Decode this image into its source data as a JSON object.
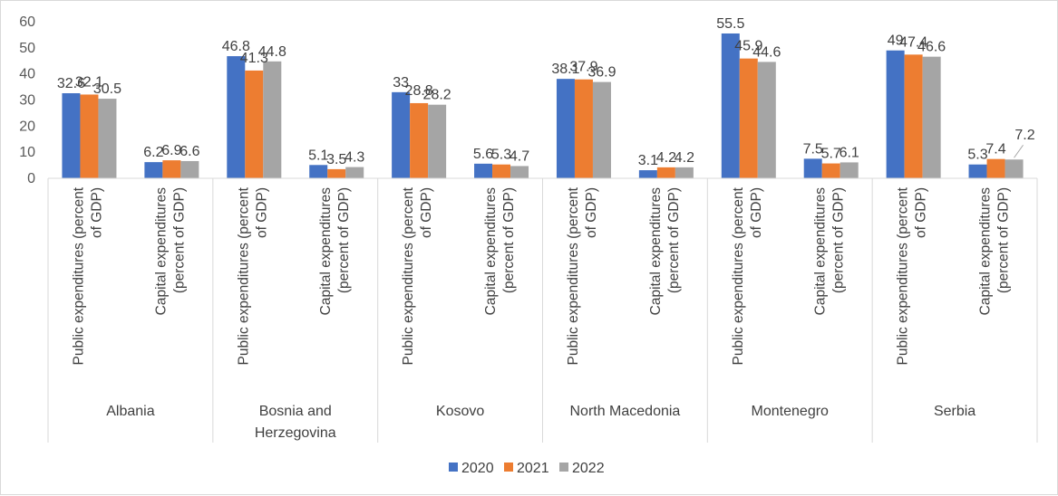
{
  "chart_data": {
    "type": "bar",
    "title": "",
    "xlabel": "",
    "ylabel": "",
    "ylim": [
      0,
      60
    ],
    "yticks": [
      0,
      10,
      20,
      30,
      40,
      50,
      60
    ],
    "grid": false,
    "legend_position": "bottom",
    "groups": [
      {
        "label": "Albania",
        "categories": [
          "Public expenditures (percent of GDP)",
          "Capital expenditures (percent of GDP)"
        ]
      },
      {
        "label": "Bosnia and Herzegovina",
        "categories": [
          "Public expenditures (percent of GDP)",
          "Capital expenditures (percent of GDP)"
        ]
      },
      {
        "label": "Kosovo",
        "categories": [
          "Public expenditures (percent of GDP)",
          "Capital expenditures (percent of GDP)"
        ]
      },
      {
        "label": "North Macedonia",
        "categories": [
          "Public expenditures (percent of GDP)",
          "Capital expenditures (percent of GDP)"
        ]
      },
      {
        "label": "Montenegro",
        "categories": [
          "Public expenditures (percent of GDP)",
          "Capital expenditures (percent of GDP)"
        ]
      },
      {
        "label": "Serbia",
        "categories": [
          "Public expenditures (percent of GDP)",
          "Capital expenditures (percent of GDP)"
        ]
      }
    ],
    "category_label_lines": {
      "public": [
        "Public expenditures (percent",
        "of GDP)"
      ],
      "capital": [
        "Capital expenditures",
        "(percent of GDP)"
      ]
    },
    "series": [
      {
        "name": "2020",
        "color": "#4472c4",
        "values": [
          32.6,
          6.2,
          46.8,
          5.1,
          33,
          5.6,
          38.1,
          3.1,
          55.5,
          7.5,
          49,
          5.3
        ]
      },
      {
        "name": "2021",
        "color": "#ed7d31",
        "values": [
          32.1,
          6.9,
          41.3,
          3.5,
          28.8,
          5.3,
          37.9,
          4.2,
          45.9,
          5.7,
          47.4,
          7.4
        ]
      },
      {
        "name": "2022",
        "color": "#a5a5a5",
        "values": [
          30.5,
          6.6,
          44.8,
          4.3,
          28.2,
          4.7,
          36.9,
          4.2,
          44.6,
          6.1,
          46.6,
          7.2
        ]
      }
    ]
  }
}
